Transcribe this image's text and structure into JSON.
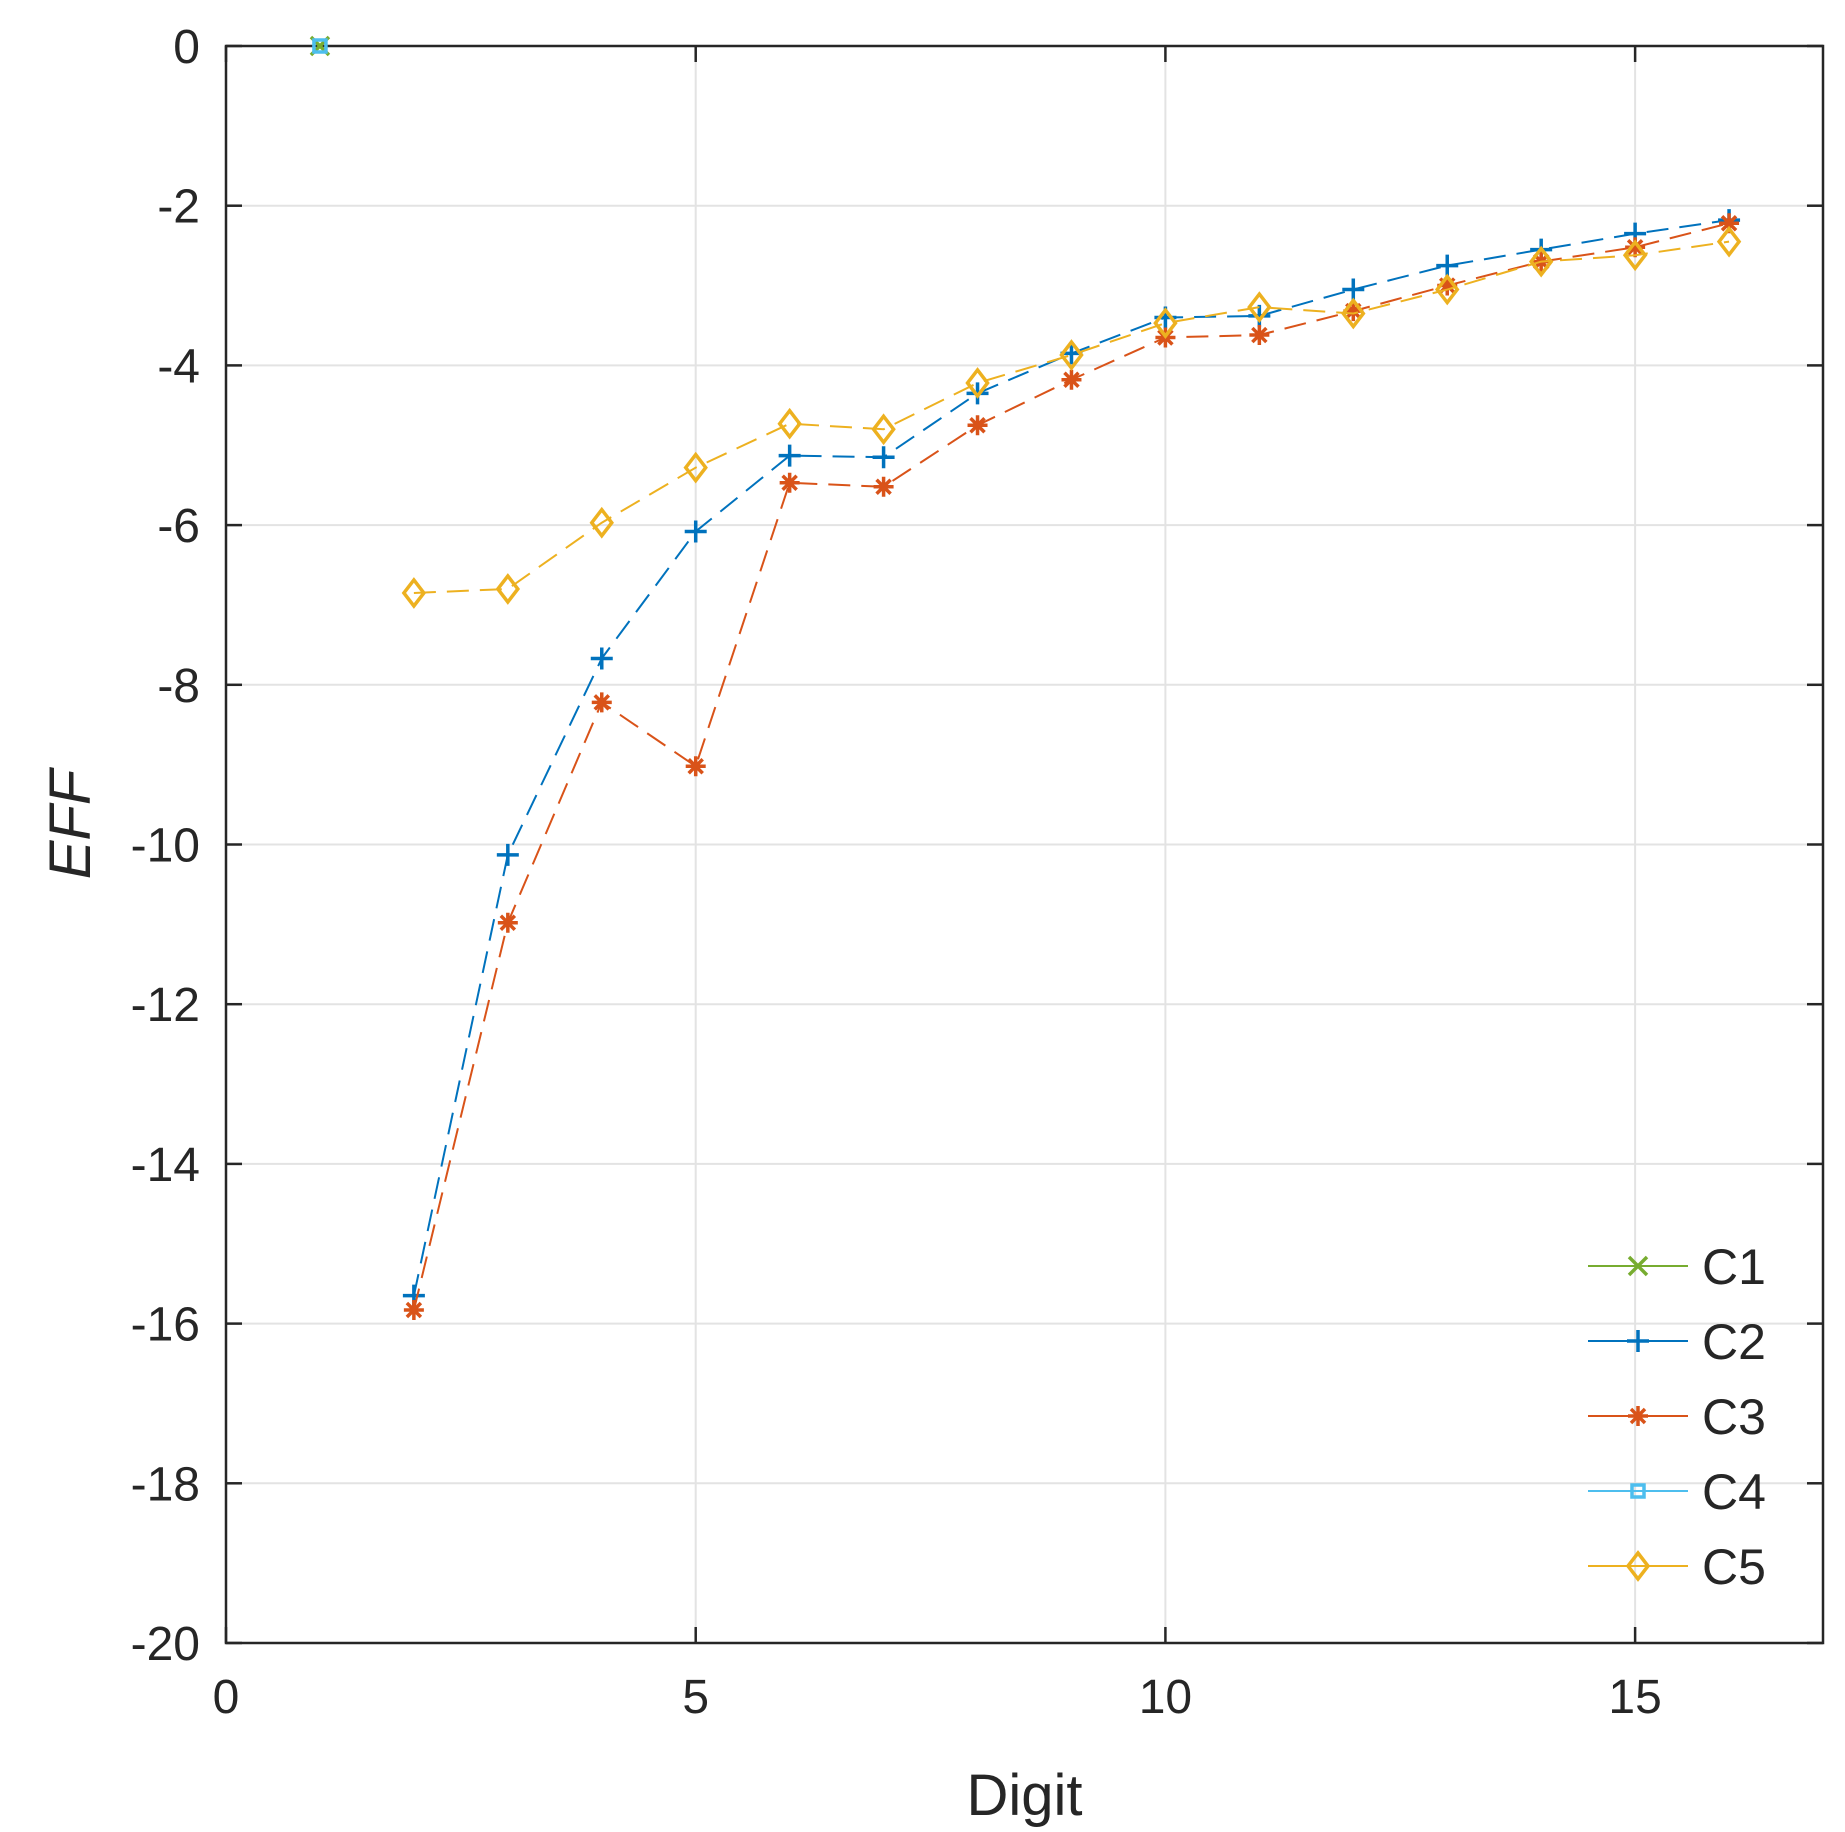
{
  "chart_data": {
    "type": "line",
    "title": "",
    "xlabel": "Digit",
    "ylabel": "EFF",
    "xlim": [
      0,
      17
    ],
    "ylim": [
      -20,
      0
    ],
    "xticks": [
      0,
      5,
      10,
      15
    ],
    "yticks": [
      0,
      -2,
      -4,
      -6,
      -8,
      -10,
      -12,
      -14,
      -16,
      -18,
      -20
    ],
    "grid": true,
    "legend_position": "bottom-right",
    "series": [
      {
        "name": "C1",
        "color": "#77ac30",
        "marker": "x",
        "dashed": false,
        "x": [
          1
        ],
        "y": [
          0
        ]
      },
      {
        "name": "C2",
        "color": "#0072bd",
        "marker": "plus",
        "dashed": true,
        "x": [
          2,
          3,
          4,
          5,
          6,
          7,
          8,
          9,
          10,
          11,
          12,
          13,
          14,
          15,
          16
        ],
        "y": [
          -15.65,
          -10.13,
          -7.67,
          -6.08,
          -5.13,
          -5.15,
          -4.35,
          -3.85,
          -3.4,
          -3.38,
          -3.05,
          -2.75,
          -2.55,
          -2.35,
          -2.18
        ]
      },
      {
        "name": "C3",
        "color": "#d95319",
        "marker": "asterisk",
        "dashed": true,
        "x": [
          2,
          3,
          4,
          5,
          6,
          7,
          8,
          9,
          10,
          11,
          12,
          13,
          14,
          15,
          16
        ],
        "y": [
          -15.83,
          -10.98,
          -8.22,
          -9.02,
          -5.47,
          -5.52,
          -4.75,
          -4.18,
          -3.65,
          -3.62,
          -3.32,
          -3.0,
          -2.7,
          -2.52,
          -2.22
        ]
      },
      {
        "name": "C4",
        "color": "#4dbeee",
        "marker": "square",
        "dashed": false,
        "x": [
          1
        ],
        "y": [
          0
        ]
      },
      {
        "name": "C5",
        "color": "#edb120",
        "marker": "diamond",
        "dashed": true,
        "x": [
          2,
          3,
          4,
          5,
          6,
          7,
          8,
          9,
          10,
          11,
          12,
          13,
          14,
          15,
          16
        ],
        "y": [
          -6.85,
          -6.8,
          -5.97,
          -5.28,
          -4.73,
          -4.8,
          -4.22,
          -3.87,
          -3.47,
          -3.27,
          -3.35,
          -3.05,
          -2.7,
          -2.62,
          -2.45
        ]
      }
    ]
  }
}
